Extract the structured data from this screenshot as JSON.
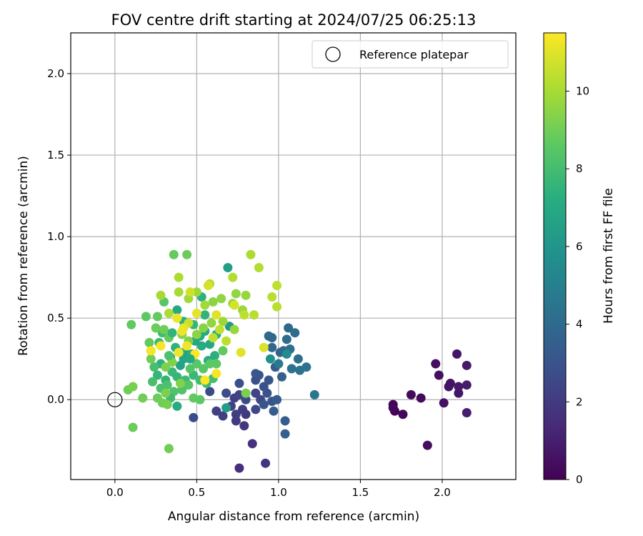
{
  "chart_data": {
    "type": "scatter",
    "title": "FOV centre drift starting at 2024/07/25 06:25:13",
    "xlabel": "Angular distance from reference (arcmin)",
    "ylabel": "Rotation from reference (arcmin)",
    "xlim": [
      -0.27,
      2.45
    ],
    "ylim": [
      -0.49,
      2.25
    ],
    "xticks": [
      "0.0",
      "0.5",
      "1.0",
      "1.5",
      "2.0"
    ],
    "xtick_values": [
      0.0,
      0.5,
      1.0,
      1.5,
      2.0
    ],
    "yticks": [
      "0.0",
      "0.5",
      "1.0",
      "1.5",
      "2.0"
    ],
    "ytick_values": [
      0.0,
      0.5,
      1.0,
      1.5,
      2.0
    ],
    "grid": true,
    "legend": {
      "position": "top-right",
      "entries": [
        "Reference platepar"
      ]
    },
    "reference_point": {
      "x": 0.0,
      "y": 0.0,
      "marker": "hollow-circle",
      "label": "Reference platepar"
    },
    "colorbar": {
      "label": "Hours from first FF file",
      "colormap": "viridis",
      "range": [
        0,
        11.5
      ],
      "ticks": [
        "0",
        "2",
        "4",
        "6",
        "8",
        "10"
      ],
      "tick_values": [
        0,
        2,
        4,
        6,
        8,
        10
      ]
    },
    "points": [
      {
        "x": 1.7,
        "y": -0.03,
        "c": 0.1
      },
      {
        "x": 1.71,
        "y": -0.07,
        "c": 0.1
      },
      {
        "x": 1.7,
        "y": -0.05,
        "c": 0.2
      },
      {
        "x": 1.76,
        "y": -0.09,
        "c": 0.2
      },
      {
        "x": 1.81,
        "y": 0.03,
        "c": 0.3
      },
      {
        "x": 1.87,
        "y": 0.01,
        "c": 0.3
      },
      {
        "x": 1.91,
        "y": -0.28,
        "c": 0.4
      },
      {
        "x": 1.96,
        "y": 0.22,
        "c": 0.4
      },
      {
        "x": 1.98,
        "y": 0.15,
        "c": 0.5
      },
      {
        "x": 2.01,
        "y": -0.02,
        "c": 0.5
      },
      {
        "x": 2.04,
        "y": 0.08,
        "c": 0.6
      },
      {
        "x": 2.05,
        "y": 0.1,
        "c": 0.6
      },
      {
        "x": 2.09,
        "y": 0.28,
        "c": 0.7
      },
      {
        "x": 2.1,
        "y": 0.04,
        "c": 0.7
      },
      {
        "x": 2.1,
        "y": 0.08,
        "c": 0.8
      },
      {
        "x": 2.15,
        "y": 0.21,
        "c": 0.8
      },
      {
        "x": 2.15,
        "y": 0.09,
        "c": 0.9
      },
      {
        "x": 2.15,
        "y": -0.08,
        "c": 0.9
      },
      {
        "x": 0.76,
        "y": -0.42,
        "c": 1.6
      },
      {
        "x": 0.84,
        "y": -0.27,
        "c": 1.7
      },
      {
        "x": 0.92,
        "y": -0.39,
        "c": 1.8
      },
      {
        "x": 0.79,
        "y": -0.16,
        "c": 1.9
      },
      {
        "x": 0.74,
        "y": -0.13,
        "c": 2.0
      },
      {
        "x": 0.8,
        "y": -0.09,
        "c": 2.0
      },
      {
        "x": 0.78,
        "y": -0.06,
        "c": 2.1
      },
      {
        "x": 0.74,
        "y": -0.09,
        "c": 2.1
      },
      {
        "x": 0.62,
        "y": -0.07,
        "c": 2.2
      },
      {
        "x": 0.66,
        "y": -0.1,
        "c": 2.2
      },
      {
        "x": 0.71,
        "y": -0.04,
        "c": 2.3
      },
      {
        "x": 0.73,
        "y": 0.01,
        "c": 2.3
      },
      {
        "x": 0.76,
        "y": 0.03,
        "c": 2.4
      },
      {
        "x": 0.86,
        "y": 0.04,
        "c": 2.4
      },
      {
        "x": 0.89,
        "y": 0.0,
        "c": 2.5
      },
      {
        "x": 0.86,
        "y": -0.06,
        "c": 2.5
      },
      {
        "x": 0.8,
        "y": 0.0,
        "c": 2.6
      },
      {
        "x": 0.58,
        "y": 0.05,
        "c": 2.6
      },
      {
        "x": 0.48,
        "y": -0.11,
        "c": 2.7
      },
      {
        "x": 0.68,
        "y": 0.04,
        "c": 2.7
      },
      {
        "x": 0.76,
        "y": 0.1,
        "c": 2.8
      },
      {
        "x": 0.86,
        "y": 0.12,
        "c": 2.8
      },
      {
        "x": 0.88,
        "y": 0.15,
        "c": 2.9
      },
      {
        "x": 0.91,
        "y": 0.08,
        "c": 2.9
      },
      {
        "x": 0.96,
        "y": -0.01,
        "c": 3.0
      },
      {
        "x": 0.93,
        "y": 0.04,
        "c": 3.0
      },
      {
        "x": 0.91,
        "y": -0.03,
        "c": 3.1
      },
      {
        "x": 0.94,
        "y": 0.12,
        "c": 3.1
      },
      {
        "x": 0.86,
        "y": 0.16,
        "c": 3.2
      },
      {
        "x": 0.98,
        "y": 0.2,
        "c": 3.3
      },
      {
        "x": 0.99,
        "y": 0.0,
        "c": 3.3
      },
      {
        "x": 0.97,
        "y": -0.07,
        "c": 3.4
      },
      {
        "x": 1.04,
        "y": -0.13,
        "c": 3.5
      },
      {
        "x": 1.04,
        "y": -0.21,
        "c": 3.6
      },
      {
        "x": 1.02,
        "y": 0.14,
        "c": 3.6
      },
      {
        "x": 1.01,
        "y": 0.29,
        "c": 3.7
      },
      {
        "x": 1.03,
        "y": 0.3,
        "c": 3.8
      },
      {
        "x": 0.96,
        "y": 0.32,
        "c": 3.8
      },
      {
        "x": 0.94,
        "y": 0.39,
        "c": 3.9
      },
      {
        "x": 0.96,
        "y": 0.38,
        "c": 3.9
      },
      {
        "x": 1.06,
        "y": 0.44,
        "c": 4.0
      },
      {
        "x": 1.1,
        "y": 0.41,
        "c": 4.1
      },
      {
        "x": 1.05,
        "y": 0.37,
        "c": 4.1
      },
      {
        "x": 1.07,
        "y": 0.31,
        "c": 4.2
      },
      {
        "x": 1.12,
        "y": 0.25,
        "c": 4.2
      },
      {
        "x": 1.08,
        "y": 0.19,
        "c": 4.3
      },
      {
        "x": 1.13,
        "y": 0.18,
        "c": 4.4
      },
      {
        "x": 1.17,
        "y": 0.2,
        "c": 4.4
      },
      {
        "x": 1.22,
        "y": 0.03,
        "c": 4.5
      },
      {
        "x": 1.0,
        "y": 0.22,
        "c": 4.6
      },
      {
        "x": 1.05,
        "y": 0.28,
        "c": 5.5
      },
      {
        "x": 0.95,
        "y": 0.25,
        "c": 5.8
      },
      {
        "x": 0.7,
        "y": 0.45,
        "c": 6.2
      },
      {
        "x": 0.69,
        "y": 0.81,
        "c": 6.5
      },
      {
        "x": 0.68,
        "y": -0.05,
        "c": 6.4
      },
      {
        "x": 0.4,
        "y": 0.21,
        "c": 6.6
      },
      {
        "x": 0.42,
        "y": 0.25,
        "c": 6.8
      },
      {
        "x": 0.44,
        "y": 0.28,
        "c": 6.7
      },
      {
        "x": 0.49,
        "y": 0.36,
        "c": 6.9
      },
      {
        "x": 0.52,
        "y": 0.39,
        "c": 7.0
      },
      {
        "x": 0.55,
        "y": 0.42,
        "c": 6.9
      },
      {
        "x": 0.53,
        "y": 0.33,
        "c": 7.1
      },
      {
        "x": 0.58,
        "y": 0.34,
        "c": 7.0
      },
      {
        "x": 0.62,
        "y": 0.4,
        "c": 7.2
      },
      {
        "x": 0.61,
        "y": 0.27,
        "c": 7.3
      },
      {
        "x": 0.57,
        "y": 0.24,
        "c": 7.1
      },
      {
        "x": 0.47,
        "y": 0.28,
        "c": 7.3
      },
      {
        "x": 0.4,
        "y": 0.29,
        "c": 7.2
      },
      {
        "x": 0.37,
        "y": 0.32,
        "c": 7.4
      },
      {
        "x": 0.34,
        "y": 0.26,
        "c": 7.5
      },
      {
        "x": 0.28,
        "y": 0.22,
        "c": 7.4
      },
      {
        "x": 0.26,
        "y": 0.15,
        "c": 7.6
      },
      {
        "x": 0.31,
        "y": 0.12,
        "c": 7.5
      },
      {
        "x": 0.35,
        "y": 0.17,
        "c": 7.7
      },
      {
        "x": 0.38,
        "y": 0.14,
        "c": 7.6
      },
      {
        "x": 0.43,
        "y": 0.12,
        "c": 7.8
      },
      {
        "x": 0.48,
        "y": 0.15,
        "c": 7.7
      },
      {
        "x": 0.52,
        "y": 0.12,
        "c": 7.9
      },
      {
        "x": 0.56,
        "y": 0.1,
        "c": 7.8
      },
      {
        "x": 0.6,
        "y": 0.13,
        "c": 8.0
      },
      {
        "x": 0.38,
        "y": 0.55,
        "c": 7.0
      },
      {
        "x": 0.42,
        "y": 0.48,
        "c": 7.3
      },
      {
        "x": 0.55,
        "y": 0.52,
        "c": 7.5
      },
      {
        "x": 0.53,
        "y": 0.63,
        "c": 7.4
      },
      {
        "x": 0.48,
        "y": 0.46,
        "c": 7.6
      },
      {
        "x": 0.27,
        "y": 0.35,
        "c": 7.8
      },
      {
        "x": 0.29,
        "y": 0.41,
        "c": 7.9
      },
      {
        "x": 0.22,
        "y": 0.3,
        "c": 8.0
      },
      {
        "x": 0.24,
        "y": 0.2,
        "c": 8.1
      },
      {
        "x": 0.23,
        "y": 0.11,
        "c": 8.1
      },
      {
        "x": 0.28,
        "y": 0.07,
        "c": 8.2
      },
      {
        "x": 0.32,
        "y": 0.09,
        "c": 8.2
      },
      {
        "x": 0.36,
        "y": 0.05,
        "c": 8.3
      },
      {
        "x": 0.41,
        "y": 0.06,
        "c": 8.3
      },
      {
        "x": 0.45,
        "y": 0.09,
        "c": 8.4
      },
      {
        "x": 0.38,
        "y": -0.04,
        "c": 7.2
      },
      {
        "x": 0.34,
        "y": 0.01,
        "c": 7.9
      },
      {
        "x": 0.46,
        "y": 0.19,
        "c": 8.4
      },
      {
        "x": 0.5,
        "y": 0.22,
        "c": 8.5
      },
      {
        "x": 0.54,
        "y": 0.19,
        "c": 8.5
      },
      {
        "x": 0.58,
        "y": 0.22,
        "c": 8.6
      },
      {
        "x": 0.62,
        "y": 0.22,
        "c": 8.6
      },
      {
        "x": 0.66,
        "y": 0.3,
        "c": 8.7
      },
      {
        "x": 0.3,
        "y": 0.6,
        "c": 8.5
      },
      {
        "x": 0.36,
        "y": 0.89,
        "c": 8.8
      },
      {
        "x": 0.44,
        "y": 0.89,
        "c": 8.9
      },
      {
        "x": 0.1,
        "y": 0.46,
        "c": 8.7
      },
      {
        "x": 0.19,
        "y": 0.51,
        "c": 8.6
      },
      {
        "x": 0.26,
        "y": 0.51,
        "c": 8.8
      },
      {
        "x": 0.21,
        "y": 0.35,
        "c": 8.7
      },
      {
        "x": 0.25,
        "y": 0.44,
        "c": 8.9
      },
      {
        "x": 0.3,
        "y": 0.43,
        "c": 9.0
      },
      {
        "x": 0.33,
        "y": 0.38,
        "c": 8.8
      },
      {
        "x": 0.22,
        "y": 0.25,
        "c": 9.0
      },
      {
        "x": 0.26,
        "y": 0.01,
        "c": 8.9
      },
      {
        "x": 0.29,
        "y": -0.02,
        "c": 9.0
      },
      {
        "x": 0.32,
        "y": -0.03,
        "c": 9.1
      },
      {
        "x": 0.08,
        "y": 0.06,
        "c": 9.0
      },
      {
        "x": 0.11,
        "y": 0.08,
        "c": 9.1
      },
      {
        "x": 0.17,
        "y": 0.01,
        "c": 9.0
      },
      {
        "x": 0.11,
        "y": -0.17,
        "c": 8.9
      },
      {
        "x": 0.33,
        "y": -0.3,
        "c": 9.0
      },
      {
        "x": 0.31,
        "y": 0.04,
        "c": 9.2
      },
      {
        "x": 0.4,
        "y": 0.1,
        "c": 9.3
      },
      {
        "x": 0.31,
        "y": 0.2,
        "c": 9.2
      },
      {
        "x": 0.35,
        "y": 0.23,
        "c": 9.3
      },
      {
        "x": 0.41,
        "y": 0.4,
        "c": 9.4
      },
      {
        "x": 0.45,
        "y": 0.36,
        "c": 9.3
      },
      {
        "x": 0.5,
        "y": 0.4,
        "c": 9.5
      },
      {
        "x": 0.54,
        "y": 0.44,
        "c": 9.4
      },
      {
        "x": 0.59,
        "y": 0.47,
        "c": 9.6
      },
      {
        "x": 0.6,
        "y": 0.6,
        "c": 9.5
      },
      {
        "x": 0.65,
        "y": 0.62,
        "c": 9.6
      },
      {
        "x": 0.72,
        "y": 0.59,
        "c": 9.7
      },
      {
        "x": 0.74,
        "y": 0.65,
        "c": 9.6
      },
      {
        "x": 0.8,
        "y": 0.64,
        "c": 9.7
      },
      {
        "x": 0.78,
        "y": 0.55,
        "c": 9.8
      },
      {
        "x": 0.73,
        "y": 0.43,
        "c": 9.7
      },
      {
        "x": 0.66,
        "y": 0.48,
        "c": 9.8
      },
      {
        "x": 0.55,
        "y": 0.58,
        "c": 9.9
      },
      {
        "x": 0.5,
        "y": 0.66,
        "c": 9.8
      },
      {
        "x": 0.45,
        "y": 0.62,
        "c": 9.9
      },
      {
        "x": 0.39,
        "y": 0.66,
        "c": 10.0
      },
      {
        "x": 0.39,
        "y": 0.75,
        "c": 10.1
      },
      {
        "x": 0.28,
        "y": 0.64,
        "c": 10.0
      },
      {
        "x": 0.33,
        "y": 0.53,
        "c": 10.1
      },
      {
        "x": 0.58,
        "y": 0.71,
        "c": 10.2
      },
      {
        "x": 0.72,
        "y": 0.75,
        "c": 10.2
      },
      {
        "x": 0.83,
        "y": 0.89,
        "c": 10.1
      },
      {
        "x": 0.88,
        "y": 0.81,
        "c": 10.2
      },
      {
        "x": 0.96,
        "y": 0.63,
        "c": 10.3
      },
      {
        "x": 0.99,
        "y": 0.57,
        "c": 10.3
      },
      {
        "x": 0.99,
        "y": 0.7,
        "c": 10.4
      },
      {
        "x": 0.85,
        "y": 0.52,
        "c": 10.3
      },
      {
        "x": 0.79,
        "y": 0.52,
        "c": 10.4
      },
      {
        "x": 0.68,
        "y": 0.36,
        "c": 10.4
      },
      {
        "x": 0.64,
        "y": 0.43,
        "c": 10.5
      },
      {
        "x": 0.6,
        "y": 0.38,
        "c": 10.5
      },
      {
        "x": 0.45,
        "y": 0.47,
        "c": 10.6
      },
      {
        "x": 0.46,
        "y": 0.66,
        "c": 10.7
      },
      {
        "x": 0.57,
        "y": 0.7,
        "c": 10.8
      },
      {
        "x": 0.73,
        "y": 0.58,
        "c": 10.8
      },
      {
        "x": 0.91,
        "y": 0.32,
        "c": 10.9
      },
      {
        "x": 0.77,
        "y": 0.29,
        "c": 11.0
      },
      {
        "x": 0.62,
        "y": 0.52,
        "c": 11.0
      },
      {
        "x": 0.5,
        "y": 0.53,
        "c": 11.1
      },
      {
        "x": 0.42,
        "y": 0.44,
        "c": 11.1
      },
      {
        "x": 0.38,
        "y": 0.5,
        "c": 11.2
      },
      {
        "x": 0.41,
        "y": 0.42,
        "c": 11.2
      },
      {
        "x": 0.44,
        "y": 0.33,
        "c": 11.3
      },
      {
        "x": 0.39,
        "y": 0.29,
        "c": 11.3
      },
      {
        "x": 0.28,
        "y": 0.33,
        "c": 11.4
      },
      {
        "x": 0.22,
        "y": 0.3,
        "c": 11.4
      },
      {
        "x": 0.49,
        "y": 0.28,
        "c": 11.5
      },
      {
        "x": 0.55,
        "y": 0.12,
        "c": 11.5
      },
      {
        "x": 0.62,
        "y": 0.16,
        "c": 11.4
      },
      {
        "x": 0.48,
        "y": 0.01,
        "c": 8.7
      },
      {
        "x": 0.52,
        "y": 0.0,
        "c": 8.6
      },
      {
        "x": 0.35,
        "y": 0.41,
        "c": 7.5
      },
      {
        "x": 0.33,
        "y": 0.27,
        "c": 8.2
      },
      {
        "x": 0.46,
        "y": 0.25,
        "c": 7.0
      },
      {
        "x": 0.8,
        "y": 0.04,
        "c": 9.2
      }
    ]
  }
}
